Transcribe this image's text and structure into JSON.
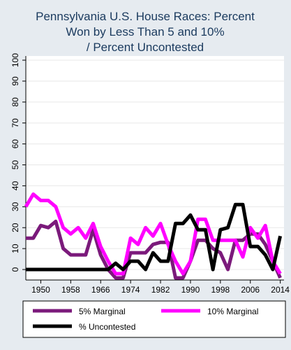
{
  "chart_data": {
    "type": "line",
    "title_lines": [
      "Pennsylvania U.S. House Races: Percent",
      "Won by Less Than 5 and 10%",
      "/ Percent Uncontested"
    ],
    "xlabel": "",
    "ylabel": "",
    "xlim": [
      1946,
      2015
    ],
    "ylim": [
      -5,
      102
    ],
    "x_ticks": [
      1950,
      1958,
      1966,
      1974,
      1982,
      1990,
      1998,
      2006,
      2014
    ],
    "y_ticks": [
      0,
      10,
      20,
      30,
      40,
      50,
      60,
      70,
      80,
      90,
      100
    ],
    "grid": "horizontal",
    "legend_position": "bottom",
    "x": [
      1946,
      1948,
      1950,
      1952,
      1954,
      1956,
      1958,
      1960,
      1962,
      1964,
      1966,
      1968,
      1970,
      1972,
      1974,
      1976,
      1978,
      1980,
      1982,
      1984,
      1986,
      1988,
      1990,
      1992,
      1994,
      1996,
      1998,
      2000,
      2002,
      2004,
      2006,
      2008,
      2010,
      2012,
      2014
    ],
    "series": [
      {
        "name": "5% Marginal",
        "color": "#7b1a7b",
        "values": [
          15,
          15,
          21,
          20,
          23,
          10,
          7,
          7,
          7,
          19,
          7,
          0,
          -4,
          -4,
          8,
          8,
          8,
          12,
          13,
          13,
          -4,
          -4,
          4,
          14,
          14,
          10,
          8,
          0,
          14,
          14,
          17,
          17,
          12,
          4,
          -4
        ]
      },
      {
        "name": "10% Marginal",
        "color": "#ff00ff",
        "values": [
          30,
          36,
          33,
          33,
          30,
          20,
          17,
          20,
          15,
          22,
          11,
          4,
          -2,
          -2,
          15,
          12,
          20,
          16,
          22,
          12,
          4,
          -2,
          4,
          24,
          24,
          14,
          14,
          14,
          14,
          6,
          20,
          15,
          21,
          4,
          -2
        ]
      },
      {
        "name": "% Uncontested",
        "color": "#000000",
        "values": [
          0,
          0,
          0,
          0,
          0,
          0,
          0,
          0,
          0,
          0,
          0,
          0,
          3,
          0,
          4,
          4,
          0,
          8,
          4,
          4,
          22,
          22,
          26,
          19,
          19,
          0,
          19,
          20,
          31,
          31,
          11,
          11,
          7,
          0,
          16
        ]
      }
    ]
  }
}
